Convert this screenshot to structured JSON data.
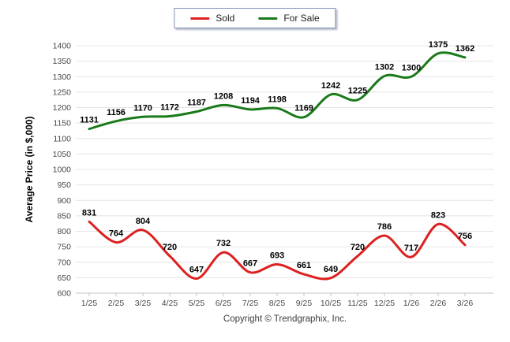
{
  "chart_data": {
    "type": "line",
    "title": "",
    "categories": [
      "1/25",
      "2/25",
      "3/25",
      "4/25",
      "5/25",
      "6/25",
      "7/25",
      "8/25",
      "9/25",
      "10/25",
      "11/25",
      "12/25",
      "1/26",
      "2/26",
      "3/26"
    ],
    "series": [
      {
        "name": "Sold",
        "color": "#dd2020",
        "values": [
          831,
          764,
          804,
          720,
          647,
          732,
          667,
          693,
          661,
          649,
          720,
          786,
          717,
          823,
          756
        ]
      },
      {
        "name": "For Sale",
        "color": "#1a7a1a",
        "values": [
          1131,
          1156,
          1170,
          1172,
          1187,
          1208,
          1194,
          1198,
          1169,
          1242,
          1225,
          1302,
          1300,
          1375,
          1362
        ]
      }
    ],
    "xlabel": "",
    "ylabel": "Average Price (in $,000)",
    "ylim": [
      600,
      1400
    ],
    "ytick_step": 50,
    "grid": true,
    "grid_color": "#e4e4e6",
    "axis_line_color": "#c6c6ca",
    "tick_label_color": "#4a4a4a",
    "data_label_color": "#000000",
    "legend_position": "top-center",
    "data_labels": true
  },
  "footer": {
    "copyright": "Copyright © Trendgraphix, Inc."
  }
}
